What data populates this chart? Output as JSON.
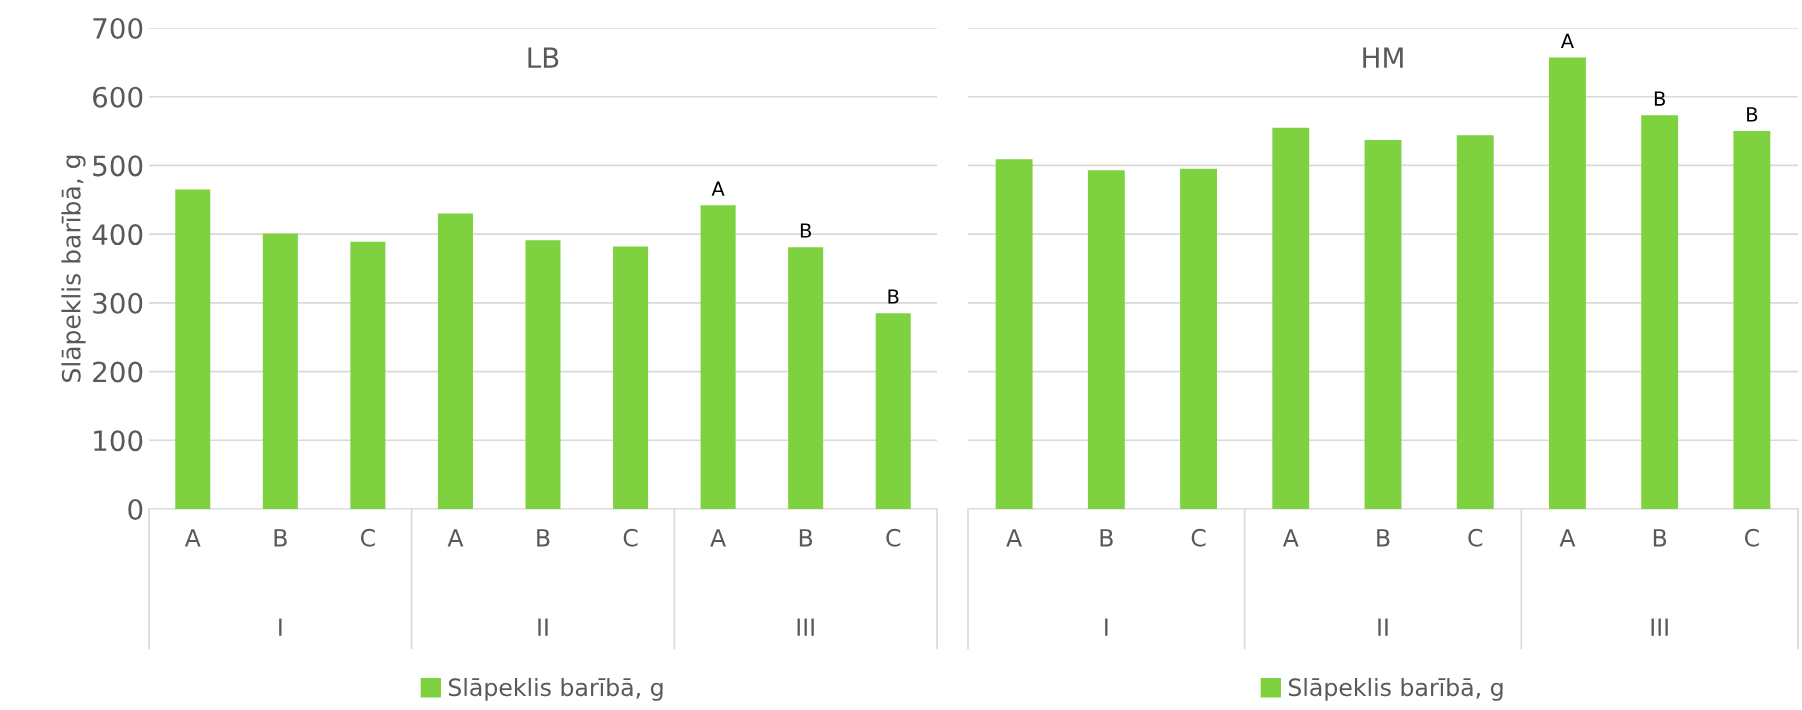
{
  "chart_data": [
    {
      "type": "bar",
      "title": "LB",
      "ylabel": "Slāpeklis barībā, g",
      "categories": [
        "A",
        "B",
        "C",
        "A",
        "B",
        "C",
        "A",
        "B",
        "C"
      ],
      "annotations": [
        "I",
        "II",
        "III"
      ],
      "series": [
        {
          "name": "Slāpeklis barībā, g",
          "color": "#7ed13f",
          "values": [
            465,
            401,
            389,
            430,
            391,
            382,
            442,
            381,
            285
          ],
          "value_labels": [
            null,
            null,
            null,
            null,
            null,
            null,
            "A",
            "B",
            "B"
          ]
        }
      ],
      "ylim": [
        0,
        700
      ],
      "yticks": [
        0,
        100,
        200,
        300,
        400,
        500,
        600,
        700
      ],
      "grid": "y",
      "legend": "bottom"
    },
    {
      "type": "bar",
      "title": "HM",
      "categories": [
        "A",
        "B",
        "C",
        "A",
        "B",
        "C",
        "A",
        "B",
        "C"
      ],
      "annotations": [
        "I",
        "II",
        "III"
      ],
      "series": [
        {
          "name": "Slāpeklis barībā, g",
          "color": "#7ed13f",
          "values": [
            509,
            493,
            495,
            555,
            537,
            544,
            657,
            573,
            550
          ],
          "value_labels": [
            null,
            null,
            null,
            null,
            null,
            null,
            "A",
            "B",
            "B"
          ]
        }
      ],
      "ylim": [
        0,
        700
      ],
      "yticks": [
        0,
        100,
        200,
        300,
        400,
        500,
        600,
        700
      ],
      "grid": "y",
      "legend": "bottom",
      "tick_labels": "x"
    }
  ]
}
